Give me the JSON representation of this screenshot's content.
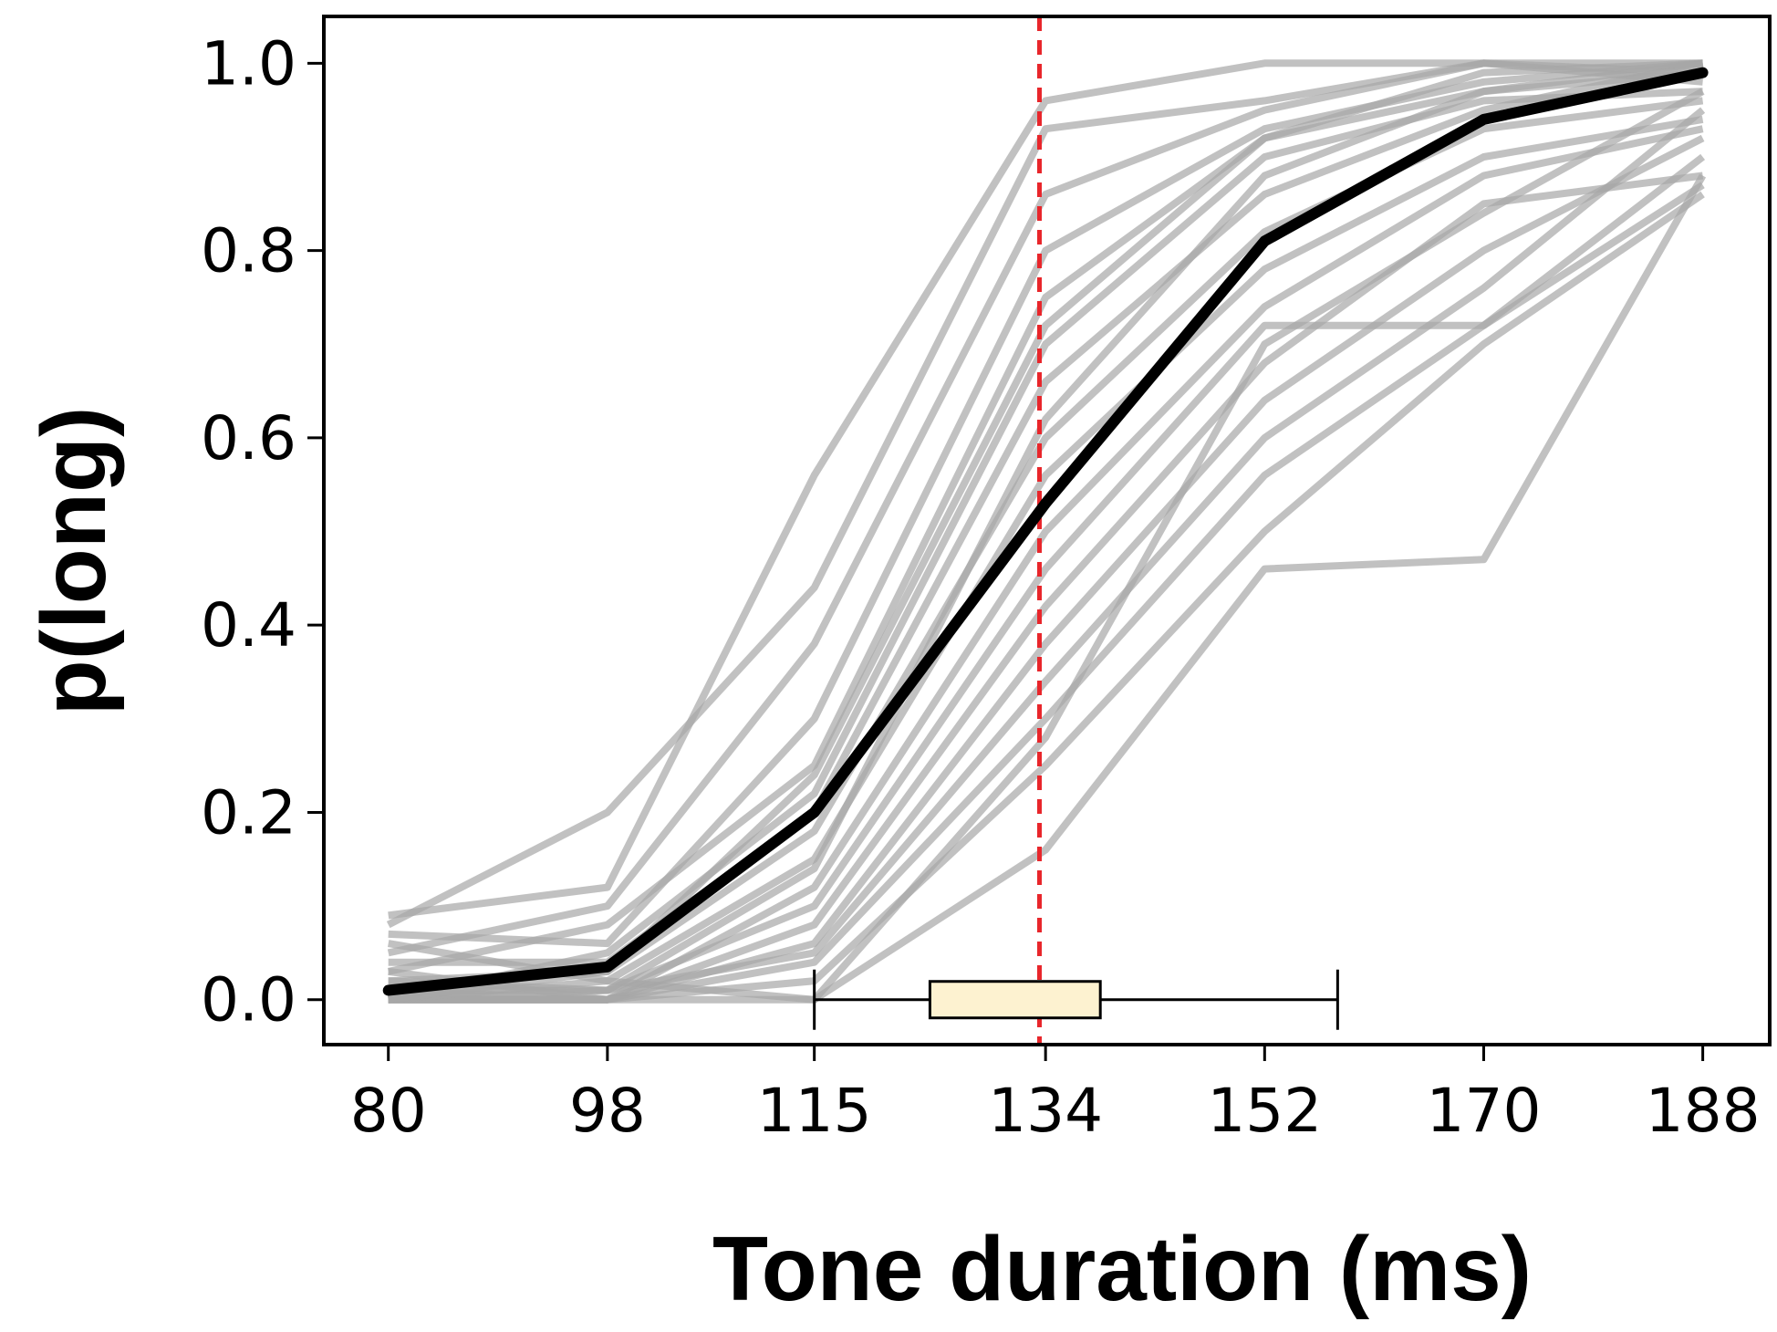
{
  "chart_data": {
    "type": "line",
    "xlabel": "Tone duration (ms)",
    "ylabel": "p(long)",
    "x": [
      80,
      98,
      115,
      134,
      152,
      170,
      188
    ],
    "x_tick_labels": [
      "80",
      "98",
      "115",
      "134",
      "152",
      "170",
      "188"
    ],
    "y_ticks": [
      0.0,
      0.2,
      0.4,
      0.6,
      0.8,
      1.0
    ],
    "y_tick_labels": [
      "0.0",
      "0.2",
      "0.4",
      "0.6",
      "0.8",
      "1.0"
    ],
    "xlim": [
      74.7,
      193.5
    ],
    "ylim": [
      -0.048,
      1.05
    ],
    "grid": false,
    "mean_series": {
      "color": "#000000",
      "values": [
        0.01,
        0.035,
        0.2,
        0.53,
        0.81,
        0.94,
        0.99
      ]
    },
    "individual_series_color": "#a6a6a6",
    "individual_series": [
      [
        0.09,
        0.12,
        0.56,
        0.96,
        1.0,
        1.0,
        1.0
      ],
      [
        0.08,
        0.2,
        0.44,
        0.93,
        0.96,
        1.0,
        0.98
      ],
      [
        0.05,
        0.1,
        0.38,
        0.86,
        0.95,
        1.0,
        0.99
      ],
      [
        0.07,
        0.06,
        0.3,
        0.8,
        0.93,
        0.98,
        1.0
      ],
      [
        0.03,
        0.08,
        0.25,
        0.75,
        0.92,
        0.97,
        0.99
      ],
      [
        0.0,
        0.05,
        0.22,
        0.7,
        0.9,
        0.96,
        0.97
      ],
      [
        0.04,
        0.04,
        0.2,
        0.66,
        0.86,
        0.95,
        1.0
      ],
      [
        0.02,
        0.03,
        0.18,
        0.6,
        0.82,
        0.93,
        0.96
      ],
      [
        0.06,
        0.02,
        0.15,
        0.56,
        0.78,
        0.9,
        0.94
      ],
      [
        0.01,
        0.0,
        0.12,
        0.5,
        0.74,
        0.88,
        0.93
      ],
      [
        0.0,
        0.01,
        0.1,
        0.46,
        0.72,
        0.72,
        0.9
      ],
      [
        0.03,
        0.0,
        0.08,
        0.42,
        0.68,
        0.85,
        0.88
      ],
      [
        0.0,
        0.0,
        0.06,
        0.38,
        0.64,
        0.8,
        0.92
      ],
      [
        0.02,
        0.01,
        0.05,
        0.34,
        0.6,
        0.76,
        0.95
      ],
      [
        0.0,
        0.0,
        0.04,
        0.3,
        0.56,
        0.72,
        0.87
      ],
      [
        0.0,
        0.0,
        0.02,
        0.25,
        0.5,
        0.7,
        0.86
      ],
      [
        0.0,
        0.0,
        0.0,
        0.16,
        0.46,
        0.47,
        0.88
      ],
      [
        0.0,
        0.02,
        0.0,
        0.28,
        0.7,
        0.84,
        0.97
      ],
      [
        0.01,
        0.01,
        0.14,
        0.62,
        0.88,
        0.97,
        1.0
      ],
      [
        0.0,
        0.03,
        0.24,
        0.72,
        0.92,
        0.99,
        1.0
      ]
    ],
    "reference_line": {
      "x": 133.5,
      "color": "#e8262b",
      "style": "dashed"
    },
    "boxplot": {
      "orientation": "horizontal",
      "y": 0.0,
      "whisker_low": 115,
      "q1": 124.5,
      "q3": 138.5,
      "whisker_high": 158,
      "fill": "#fdf2d0"
    }
  }
}
